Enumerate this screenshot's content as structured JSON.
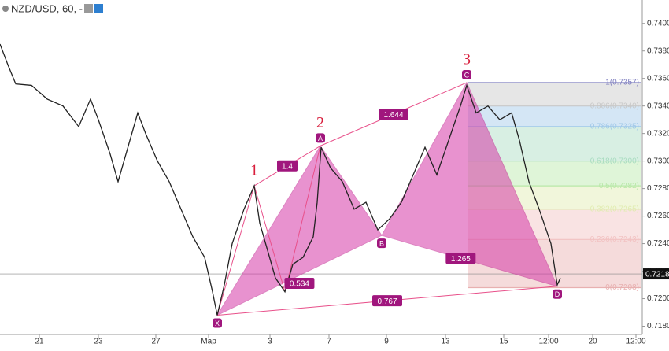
{
  "chart_data": {
    "type": "line",
    "title": "NZD/USD, 60, -",
    "color": "#222222",
    "x": [
      0,
      10,
      20,
      40,
      60,
      80,
      100,
      115,
      125,
      140,
      150,
      160,
      175,
      185,
      200,
      215,
      230,
      245,
      260,
      270,
      276,
      285,
      295,
      310,
      323,
      330,
      340,
      350,
      362,
      372,
      385,
      398,
      403,
      408,
      420,
      435,
      450,
      465,
      480,
      495,
      510,
      525,
      540,
      555,
      570,
      585,
      593,
      605,
      620,
      635,
      650,
      660,
      672,
      685,
      700,
      708,
      712
    ],
    "values": [
      0.7385,
      0.737,
      0.7356,
      0.7355,
      0.7345,
      0.734,
      0.7325,
      0.7345,
      0.733,
      0.7305,
      0.7285,
      0.7305,
      0.7335,
      0.732,
      0.73,
      0.7285,
      0.7265,
      0.7245,
      0.723,
      0.7205,
      0.7188,
      0.721,
      0.724,
      0.7265,
      0.7282,
      0.7255,
      0.7235,
      0.7215,
      0.7205,
      0.7225,
      0.723,
      0.7245,
      0.727,
      0.731,
      0.7295,
      0.7285,
      0.7265,
      0.727,
      0.725,
      0.7258,
      0.727,
      0.729,
      0.731,
      0.729,
      0.7315,
      0.734,
      0.7355,
      0.7335,
      0.734,
      0.733,
      0.7335,
      0.7315,
      0.7285,
      0.7265,
      0.724,
      0.721,
      0.7215
    ],
    "xlim": [
      0,
      815
    ],
    "ylim": [
      0.7174,
      0.7417
    ],
    "xticks": [
      {
        "value": 50,
        "label": "21"
      },
      {
        "value": 125,
        "label": "23"
      },
      {
        "value": 198,
        "label": "27"
      },
      {
        "value": 265,
        "label": "Мар"
      },
      {
        "value": 343,
        "label": "3"
      },
      {
        "value": 418,
        "label": "7"
      },
      {
        "value": 491,
        "label": "9"
      },
      {
        "value": 566,
        "label": "13"
      },
      {
        "value": 640,
        "label": "15"
      },
      {
        "value": 697,
        "label": "12:00"
      },
      {
        "value": 753,
        "label": "20"
      },
      {
        "value": 808,
        "label": "12:00"
      }
    ],
    "yticks": [
      {
        "value": 0.718,
        "label": "0.7180"
      },
      {
        "value": 0.72,
        "label": "0.7200"
      },
      {
        "value": 0.722,
        "label": "0.7220"
      },
      {
        "value": 0.724,
        "label": "0.7240"
      },
      {
        "value": 0.726,
        "label": "0.7260"
      },
      {
        "value": 0.728,
        "label": "0.7280"
      },
      {
        "value": 0.73,
        "label": "0.7300"
      },
      {
        "value": 0.732,
        "label": "0.7320"
      },
      {
        "value": 0.734,
        "label": "0.7340"
      },
      {
        "value": 0.736,
        "label": "0.7360"
      },
      {
        "value": 0.738,
        "label": "0.7380"
      },
      {
        "value": 0.74,
        "label": "0.7400"
      }
    ],
    "last_price": {
      "value": 0.7218,
      "label": "0.7218"
    },
    "pattern": {
      "points": [
        {
          "label": "X",
          "x": 276,
          "y": 0.7188
        },
        {
          "x": 323,
          "y": 0.7282
        },
        {
          "x": 362,
          "y": 0.7205
        },
        {
          "label": "A",
          "x": 407,
          "y": 0.7311
        },
        {
          "label": "B",
          "x": 485,
          "y": 0.7246
        },
        {
          "label": "C",
          "x": 593,
          "y": 0.7357
        },
        {
          "label": "D",
          "x": 708,
          "y": 0.7209
        }
      ],
      "wave_labels": [
        "1",
        "2",
        "3"
      ],
      "ratios": [
        "1.4",
        "1.644",
        "0.534",
        "1.265",
        "0.767"
      ]
    },
    "fib": [
      {
        "level": 1,
        "price": 0.7357,
        "label": "1(0.7357)",
        "color": "#7e7ebf"
      },
      {
        "level": 0.886,
        "price": 0.734,
        "label": "0.886(0.7340)",
        "color": "#c8c8c8"
      },
      {
        "level": 0.786,
        "price": 0.7325,
        "label": "0.786(0.7325)",
        "color": "#9fc8e8"
      },
      {
        "level": 0.618,
        "price": 0.73,
        "label": "0.618(0.7300)",
        "color": "#a8dcc0"
      },
      {
        "level": 0.5,
        "price": 0.7282,
        "label": "0.5(0.7282)",
        "color": "#b8e8a8"
      },
      {
        "level": 0.382,
        "price": 0.7265,
        "label": "0.382(0.7265)",
        "color": "#e0ecb0"
      },
      {
        "level": 0.236,
        "price": 0.7243,
        "label": "0.236(0.7243)",
        "color": "#f2c2c2"
      },
      {
        "level": 0,
        "price": 0.7208,
        "label": "0(0.7208)",
        "color": "#e8b0b0"
      }
    ]
  }
}
